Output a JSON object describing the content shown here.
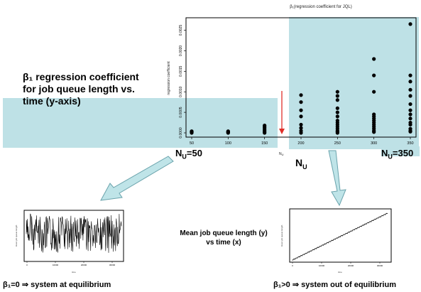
{
  "colors": {
    "highlight": "#bee1e6",
    "arrow_fill": "#bfe4e8",
    "arrow_stroke": "#6aa3ac",
    "red_arrow": "#e0302a"
  },
  "labels": {
    "beta_line1": "β₁ regression coefficient",
    "beta_line2": "for job queue length vs.",
    "beta_line3": "time (y-axis)",
    "nu_50": "N",
    "nu_50_sub": "U",
    "nu_50_val": "=50",
    "nu_center": "N",
    "nu_center_sub": "U",
    "nu_350": "N",
    "nu_350_sub": "U",
    "nu_350_val": "=350",
    "mean_line1": "Mean job queue length (y)",
    "mean_line2": "vs time (x)",
    "bottom_left": "β₁=0 ⇒ system at equilibrium",
    "bottom_right": "β₁>0 ⇒ system out of equilibrium"
  },
  "chart_data": [
    {
      "type": "scatter",
      "title": "β₁(regression coefficient for JQL)",
      "ylabel": "regression coefficient",
      "xlabel": "N_U",
      "xlim": [
        40,
        360
      ],
      "ylim": [
        -0.0001,
        0.0027
      ],
      "xticks": [
        "50",
        "100",
        "150",
        "200",
        "250",
        "300",
        "350"
      ],
      "yticks": [
        "0.0000",
        "0.0005",
        "0.0010",
        "0.0015",
        "0.0020",
        "0.0025"
      ],
      "x": [
        50,
        50,
        50,
        50,
        50,
        50,
        100,
        100,
        100,
        100,
        100,
        150,
        150,
        150,
        150,
        150,
        150,
        150,
        200,
        200,
        200,
        200,
        200,
        200,
        200,
        200,
        250,
        250,
        250,
        250,
        250,
        250,
        250,
        250,
        250,
        250,
        250,
        250,
        250,
        250,
        300,
        300,
        300,
        300,
        300,
        300,
        300,
        300,
        300,
        300,
        300,
        300,
        300,
        350,
        350,
        350,
        350,
        350,
        350,
        350,
        350,
        350,
        350,
        350,
        350,
        350,
        350
      ],
      "y": [
        3e-05,
        1e-05,
        2e-05,
        4e-05,
        0.0,
        2e-05,
        3e-05,
        1e-05,
        2e-05,
        4e-05,
        0.0,
        0.00018,
        0.00012,
        8e-05,
        5e-05,
        2e-05,
        0.0,
        0.00015,
        0.00092,
        0.00075,
        0.00055,
        0.0004,
        0.0002,
        0.00012,
        5e-05,
        0.0,
        0.001,
        0.0009,
        0.0008,
        0.0006,
        0.0005,
        0.0004,
        0.0003,
        0.00025,
        0.0002,
        0.00015,
        0.0001,
        5e-05,
        3e-05,
        0.0,
        0.0018,
        0.0014,
        0.001,
        0.00045,
        0.0004,
        0.00035,
        0.0003,
        0.00025,
        0.0002,
        0.00015,
        0.0001,
        5e-05,
        2e-05,
        0.00265,
        0.0014,
        0.00125,
        0.00105,
        0.0009,
        0.0007,
        0.00055,
        0.00045,
        0.00035,
        0.00025,
        0.0002,
        0.0001,
        5e-05,
        3e-05
      ],
      "grid": false
    },
    {
      "type": "line",
      "title": "",
      "xlabel": "time",
      "ylabel": "mean job queue length",
      "xticks": [
        "0",
        "10000",
        "20000",
        "30000"
      ],
      "description_series": "noisy stationary"
    },
    {
      "type": "line",
      "title": "",
      "xlabel": "time",
      "ylabel": "mean job queue length",
      "xticks": [
        "0",
        "10000",
        "20000",
        "30000"
      ],
      "description_series": "linear increasing"
    }
  ]
}
